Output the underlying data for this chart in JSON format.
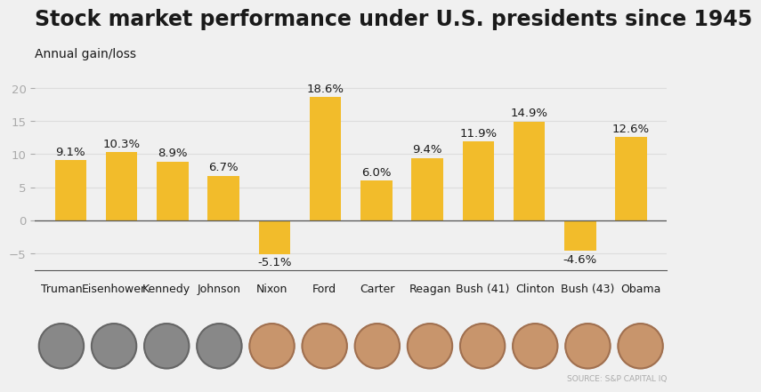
{
  "title": "Stock market performance under U.S. presidents since 1945",
  "subtitle": "Annual gain/loss",
  "categories": [
    "Truman",
    "Eisenhower",
    "Kennedy",
    "Johnson",
    "Nixon",
    "Ford",
    "Carter",
    "Reagan",
    "Bush (41)",
    "Clinton",
    "Bush (43)",
    "Obama"
  ],
  "values": [
    9.1,
    10.3,
    8.9,
    6.7,
    -5.1,
    18.6,
    6.0,
    9.4,
    11.9,
    14.9,
    -4.6,
    12.6
  ],
  "bar_color_gold": "#F2BC2B",
  "background_color": "#F0F0F0",
  "text_color": "#1a1a1a",
  "axis_color": "#aaaaaa",
  "grid_color": "#dddddd",
  "zero_line_color": "#555555",
  "ylim": [
    -7.5,
    22
  ],
  "yticks": [
    -5,
    0,
    5,
    10,
    15,
    20
  ],
  "source_text": "SOURCE: S&P CAPITAL IQ",
  "title_fontsize": 17,
  "subtitle_fontsize": 10,
  "label_fontsize": 9,
  "tick_fontsize": 9.5,
  "value_fontsize": 9.5
}
